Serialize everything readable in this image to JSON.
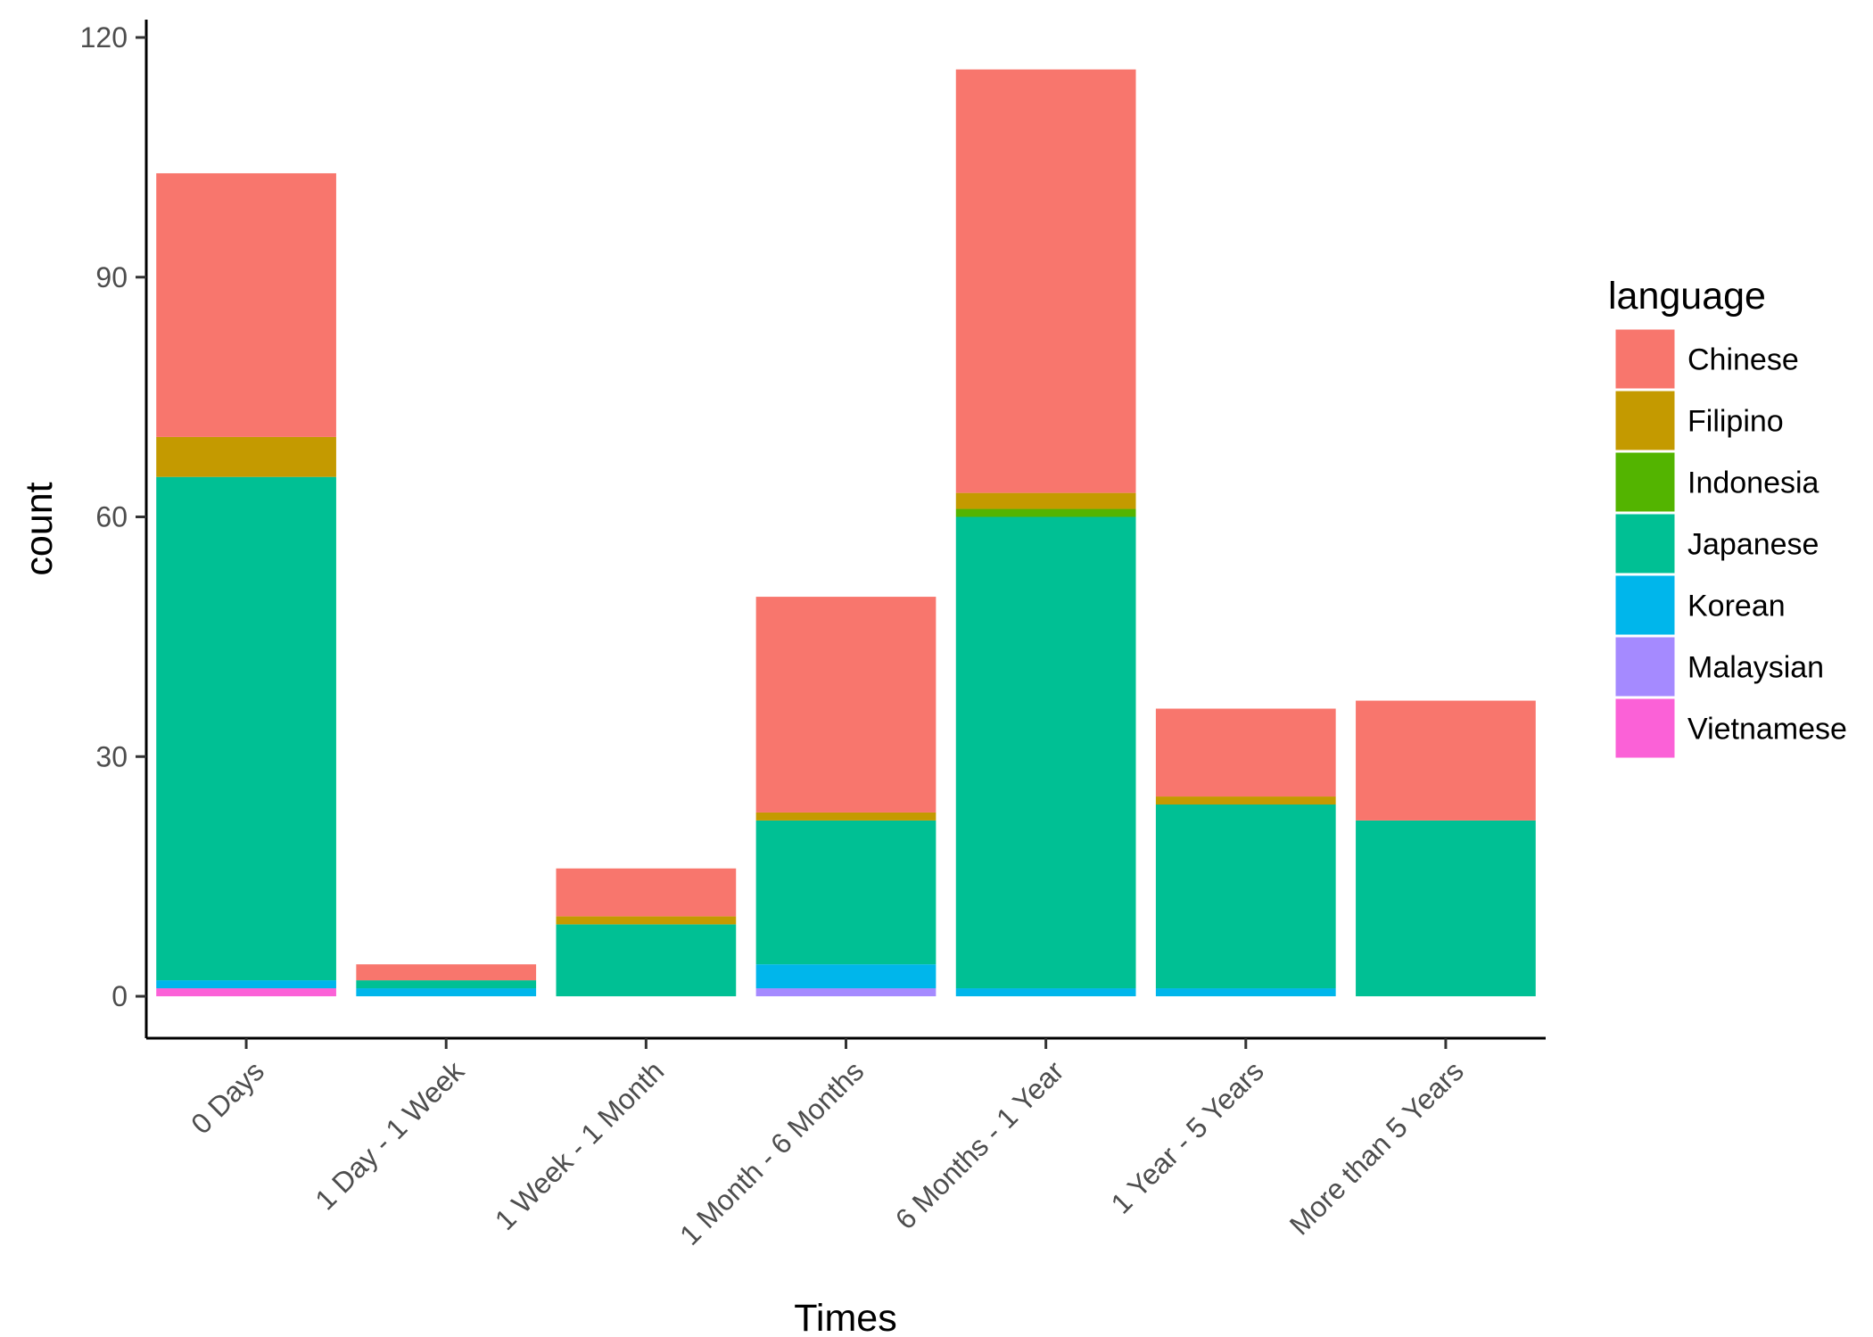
{
  "chart_data": {
    "type": "bar",
    "stacked": true,
    "title": "",
    "xlabel": "Times",
    "ylabel": "count",
    "ylim": [
      0,
      120
    ],
    "yticks": [
      0,
      30,
      60,
      90,
      120
    ],
    "grid": false,
    "legend_title": "language",
    "legend_position": "right",
    "categories": [
      "0 Days",
      "1 Day - 1 Week",
      "1 Week - 1 Month",
      "1 Month - 6 Months",
      "6 Months - 1 Year",
      "1 Year - 5 Years",
      "More than 5 Years"
    ],
    "series": [
      {
        "name": "Chinese",
        "color": "#F8766D",
        "values": [
          33,
          2,
          6,
          27,
          53,
          11,
          15
        ]
      },
      {
        "name": "Filipino",
        "color": "#C49A00",
        "values": [
          5,
          0,
          1,
          1,
          2,
          1,
          0
        ]
      },
      {
        "name": "Indonesia",
        "color": "#53B400",
        "values": [
          0,
          0,
          0,
          0,
          1,
          0,
          0
        ]
      },
      {
        "name": "Japanese",
        "color": "#00C094",
        "values": [
          63,
          1,
          9,
          18,
          59,
          23,
          22
        ]
      },
      {
        "name": "Korean",
        "color": "#00B6EB",
        "values": [
          1,
          1,
          0,
          3,
          1,
          1,
          0
        ]
      },
      {
        "name": "Malaysian",
        "color": "#A58AFF",
        "values": [
          0,
          0,
          0,
          1,
          0,
          0,
          0
        ]
      },
      {
        "name": "Vietnamese",
        "color": "#FB61D7",
        "values": [
          1,
          0,
          0,
          0,
          0,
          0,
          0
        ]
      }
    ]
  }
}
